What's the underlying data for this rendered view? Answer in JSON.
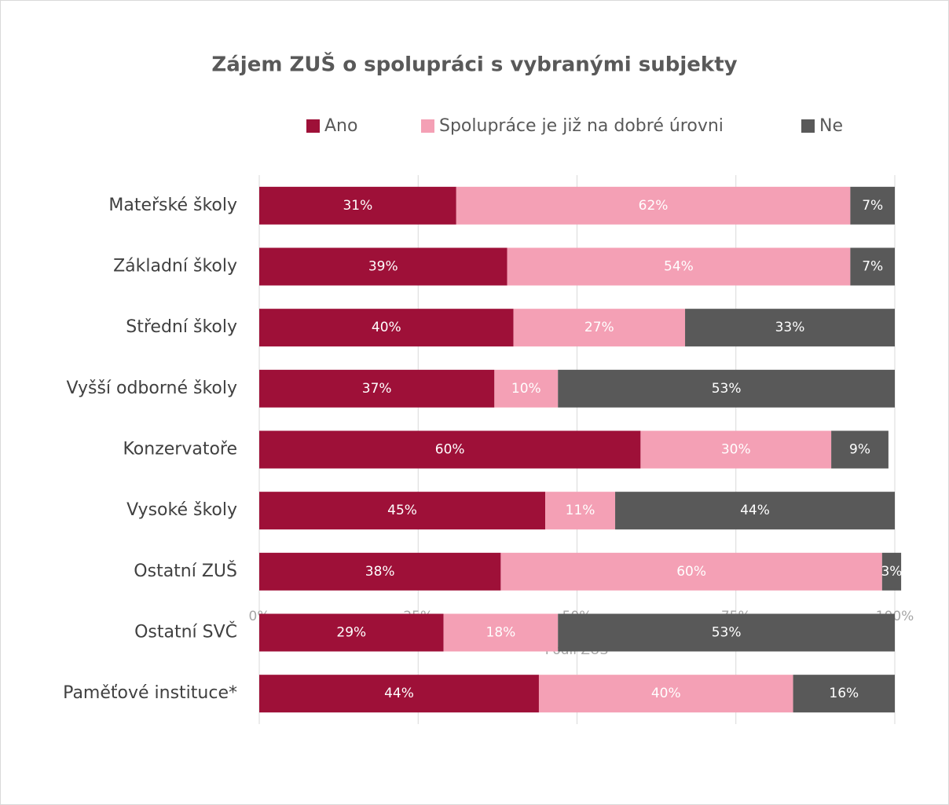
{
  "chart_data": {
    "type": "stacked-bar-horizontal",
    "title": "Zájem ZUŠ o spolupráci s vybranými subjekty",
    "x_label": "Podíl ZUŠ",
    "categories": [
      "Mateřské školy",
      "Základní školy",
      "Střední školy",
      "Vyšší odborné školy",
      "Konzervatoře",
      "Vysoké školy",
      "Ostatní ZUŠ",
      "Ostatní SVČ",
      "Paměťové instituce*"
    ],
    "series": [
      {
        "name": "Ano",
        "color": "#9e1038",
        "values": [
          31,
          39,
          40,
          37,
          60,
          45,
          38,
          29,
          44
        ],
        "value_labels": [
          "31%",
          "39%",
          "40%",
          "37%",
          "60%",
          "45%",
          "38%",
          "29%",
          "44%"
        ]
      },
      {
        "name": "Spolupráce je již na dobré úrovni",
        "color": "#f4a0b5",
        "values": [
          62,
          54,
          27,
          10,
          30,
          11,
          60,
          18,
          40
        ],
        "value_labels": [
          "62%",
          "54%",
          "27%",
          "10%",
          "30%",
          "11%",
          "60%",
          "18%",
          "40%"
        ]
      },
      {
        "name": "Ne",
        "color": "#595959",
        "values": [
          7,
          7,
          33,
          53,
          9,
          44,
          3,
          53,
          16
        ],
        "value_labels": [
          "7%",
          "7%",
          "33%",
          "53%",
          "9%",
          "44%",
          "3%",
          "53%",
          "16%"
        ]
      }
    ],
    "xlim": [
      0,
      100
    ],
    "xticks": [
      {
        "value": 0,
        "label": "0%"
      },
      {
        "value": 25,
        "label": "25%"
      },
      {
        "value": 50,
        "label": "50%"
      },
      {
        "value": 75,
        "label": "75%"
      },
      {
        "value": 100,
        "label": "100%"
      }
    ],
    "grid": true,
    "legend": "top"
  }
}
